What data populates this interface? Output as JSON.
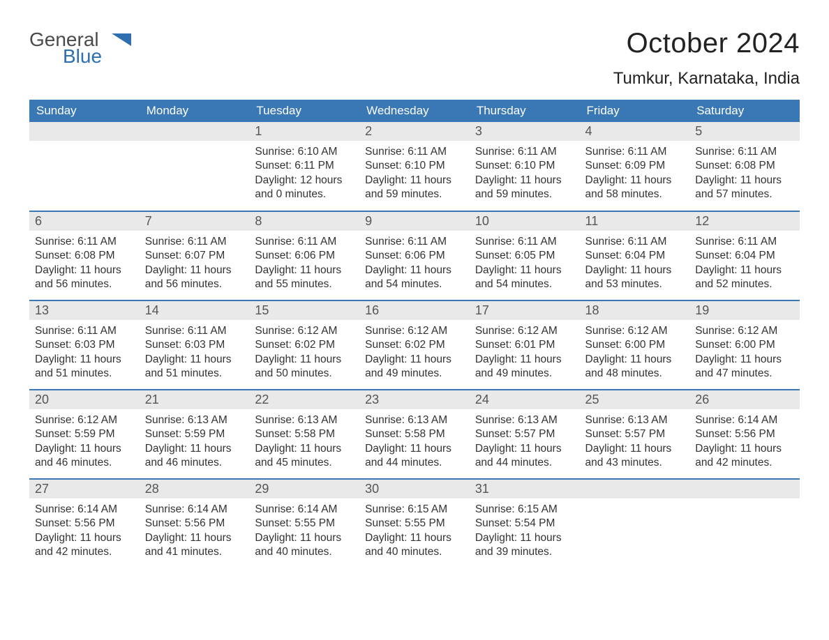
{
  "brand": {
    "word1": "General",
    "word2": "Blue",
    "word1_color": "#4a4a4a",
    "word2_color": "#2f6fb0"
  },
  "title": "October 2024",
  "location": "Tumkur, Karnataka, India",
  "colors": {
    "header_bg": "#3a78b5",
    "header_text": "#ffffff",
    "daynum_bg": "#e9e9e9",
    "daynum_text": "#555555",
    "body_text": "#333333",
    "row_divider": "#3a78b5",
    "page_bg": "#ffffff"
  },
  "day_labels": [
    "Sunday",
    "Monday",
    "Tuesday",
    "Wednesday",
    "Thursday",
    "Friday",
    "Saturday"
  ],
  "weeks": [
    [
      null,
      null,
      {
        "n": "1",
        "sr": "Sunrise: 6:10 AM",
        "ss": "Sunset: 6:11 PM",
        "d1": "Daylight: 12 hours",
        "d2": "and 0 minutes."
      },
      {
        "n": "2",
        "sr": "Sunrise: 6:11 AM",
        "ss": "Sunset: 6:10 PM",
        "d1": "Daylight: 11 hours",
        "d2": "and 59 minutes."
      },
      {
        "n": "3",
        "sr": "Sunrise: 6:11 AM",
        "ss": "Sunset: 6:10 PM",
        "d1": "Daylight: 11 hours",
        "d2": "and 59 minutes."
      },
      {
        "n": "4",
        "sr": "Sunrise: 6:11 AM",
        "ss": "Sunset: 6:09 PM",
        "d1": "Daylight: 11 hours",
        "d2": "and 58 minutes."
      },
      {
        "n": "5",
        "sr": "Sunrise: 6:11 AM",
        "ss": "Sunset: 6:08 PM",
        "d1": "Daylight: 11 hours",
        "d2": "and 57 minutes."
      }
    ],
    [
      {
        "n": "6",
        "sr": "Sunrise: 6:11 AM",
        "ss": "Sunset: 6:08 PM",
        "d1": "Daylight: 11 hours",
        "d2": "and 56 minutes."
      },
      {
        "n": "7",
        "sr": "Sunrise: 6:11 AM",
        "ss": "Sunset: 6:07 PM",
        "d1": "Daylight: 11 hours",
        "d2": "and 56 minutes."
      },
      {
        "n": "8",
        "sr": "Sunrise: 6:11 AM",
        "ss": "Sunset: 6:06 PM",
        "d1": "Daylight: 11 hours",
        "d2": "and 55 minutes."
      },
      {
        "n": "9",
        "sr": "Sunrise: 6:11 AM",
        "ss": "Sunset: 6:06 PM",
        "d1": "Daylight: 11 hours",
        "d2": "and 54 minutes."
      },
      {
        "n": "10",
        "sr": "Sunrise: 6:11 AM",
        "ss": "Sunset: 6:05 PM",
        "d1": "Daylight: 11 hours",
        "d2": "and 54 minutes."
      },
      {
        "n": "11",
        "sr": "Sunrise: 6:11 AM",
        "ss": "Sunset: 6:04 PM",
        "d1": "Daylight: 11 hours",
        "d2": "and 53 minutes."
      },
      {
        "n": "12",
        "sr": "Sunrise: 6:11 AM",
        "ss": "Sunset: 6:04 PM",
        "d1": "Daylight: 11 hours",
        "d2": "and 52 minutes."
      }
    ],
    [
      {
        "n": "13",
        "sr": "Sunrise: 6:11 AM",
        "ss": "Sunset: 6:03 PM",
        "d1": "Daylight: 11 hours",
        "d2": "and 51 minutes."
      },
      {
        "n": "14",
        "sr": "Sunrise: 6:11 AM",
        "ss": "Sunset: 6:03 PM",
        "d1": "Daylight: 11 hours",
        "d2": "and 51 minutes."
      },
      {
        "n": "15",
        "sr": "Sunrise: 6:12 AM",
        "ss": "Sunset: 6:02 PM",
        "d1": "Daylight: 11 hours",
        "d2": "and 50 minutes."
      },
      {
        "n": "16",
        "sr": "Sunrise: 6:12 AM",
        "ss": "Sunset: 6:02 PM",
        "d1": "Daylight: 11 hours",
        "d2": "and 49 minutes."
      },
      {
        "n": "17",
        "sr": "Sunrise: 6:12 AM",
        "ss": "Sunset: 6:01 PM",
        "d1": "Daylight: 11 hours",
        "d2": "and 49 minutes."
      },
      {
        "n": "18",
        "sr": "Sunrise: 6:12 AM",
        "ss": "Sunset: 6:00 PM",
        "d1": "Daylight: 11 hours",
        "d2": "and 48 minutes."
      },
      {
        "n": "19",
        "sr": "Sunrise: 6:12 AM",
        "ss": "Sunset: 6:00 PM",
        "d1": "Daylight: 11 hours",
        "d2": "and 47 minutes."
      }
    ],
    [
      {
        "n": "20",
        "sr": "Sunrise: 6:12 AM",
        "ss": "Sunset: 5:59 PM",
        "d1": "Daylight: 11 hours",
        "d2": "and 46 minutes."
      },
      {
        "n": "21",
        "sr": "Sunrise: 6:13 AM",
        "ss": "Sunset: 5:59 PM",
        "d1": "Daylight: 11 hours",
        "d2": "and 46 minutes."
      },
      {
        "n": "22",
        "sr": "Sunrise: 6:13 AM",
        "ss": "Sunset: 5:58 PM",
        "d1": "Daylight: 11 hours",
        "d2": "and 45 minutes."
      },
      {
        "n": "23",
        "sr": "Sunrise: 6:13 AM",
        "ss": "Sunset: 5:58 PM",
        "d1": "Daylight: 11 hours",
        "d2": "and 44 minutes."
      },
      {
        "n": "24",
        "sr": "Sunrise: 6:13 AM",
        "ss": "Sunset: 5:57 PM",
        "d1": "Daylight: 11 hours",
        "d2": "and 44 minutes."
      },
      {
        "n": "25",
        "sr": "Sunrise: 6:13 AM",
        "ss": "Sunset: 5:57 PM",
        "d1": "Daylight: 11 hours",
        "d2": "and 43 minutes."
      },
      {
        "n": "26",
        "sr": "Sunrise: 6:14 AM",
        "ss": "Sunset: 5:56 PM",
        "d1": "Daylight: 11 hours",
        "d2": "and 42 minutes."
      }
    ],
    [
      {
        "n": "27",
        "sr": "Sunrise: 6:14 AM",
        "ss": "Sunset: 5:56 PM",
        "d1": "Daylight: 11 hours",
        "d2": "and 42 minutes."
      },
      {
        "n": "28",
        "sr": "Sunrise: 6:14 AM",
        "ss": "Sunset: 5:56 PM",
        "d1": "Daylight: 11 hours",
        "d2": "and 41 minutes."
      },
      {
        "n": "29",
        "sr": "Sunrise: 6:14 AM",
        "ss": "Sunset: 5:55 PM",
        "d1": "Daylight: 11 hours",
        "d2": "and 40 minutes."
      },
      {
        "n": "30",
        "sr": "Sunrise: 6:15 AM",
        "ss": "Sunset: 5:55 PM",
        "d1": "Daylight: 11 hours",
        "d2": "and 40 minutes."
      },
      {
        "n": "31",
        "sr": "Sunrise: 6:15 AM",
        "ss": "Sunset: 5:54 PM",
        "d1": "Daylight: 11 hours",
        "d2": "and 39 minutes."
      },
      null,
      null
    ]
  ]
}
